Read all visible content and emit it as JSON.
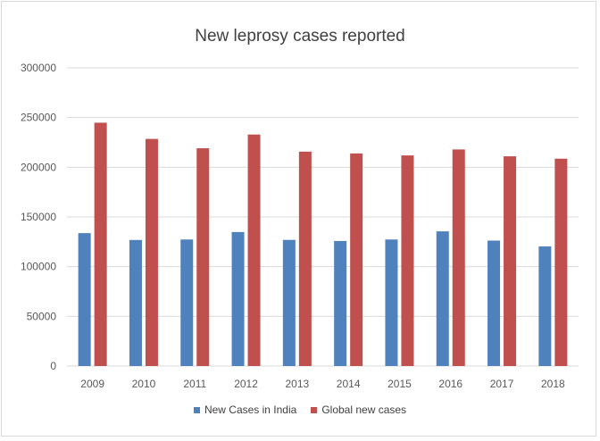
{
  "chart_data": {
    "type": "bar",
    "title": "New leprosy cases reported",
    "categories": [
      "2009",
      "2010",
      "2011",
      "2012",
      "2013",
      "2014",
      "2015",
      "2016",
      "2017",
      "2018"
    ],
    "series": [
      {
        "name": "New Cases in India",
        "color": "#4f81bd",
        "values": [
          133700,
          126800,
          127300,
          134800,
          126900,
          125800,
          127300,
          135500,
          126200,
          120300
        ]
      },
      {
        "name": "Global new cases",
        "color": "#c0504d",
        "values": [
          244800,
          228500,
          219100,
          232900,
          215700,
          213900,
          211900,
          217900,
          211000,
          208600
        ]
      }
    ],
    "yticks": [
      "0",
      "50000",
      "100000",
      "150000",
      "200000",
      "250000",
      "300000"
    ],
    "ylim": [
      0,
      300000
    ],
    "grid": true,
    "legend_position": "bottom"
  }
}
